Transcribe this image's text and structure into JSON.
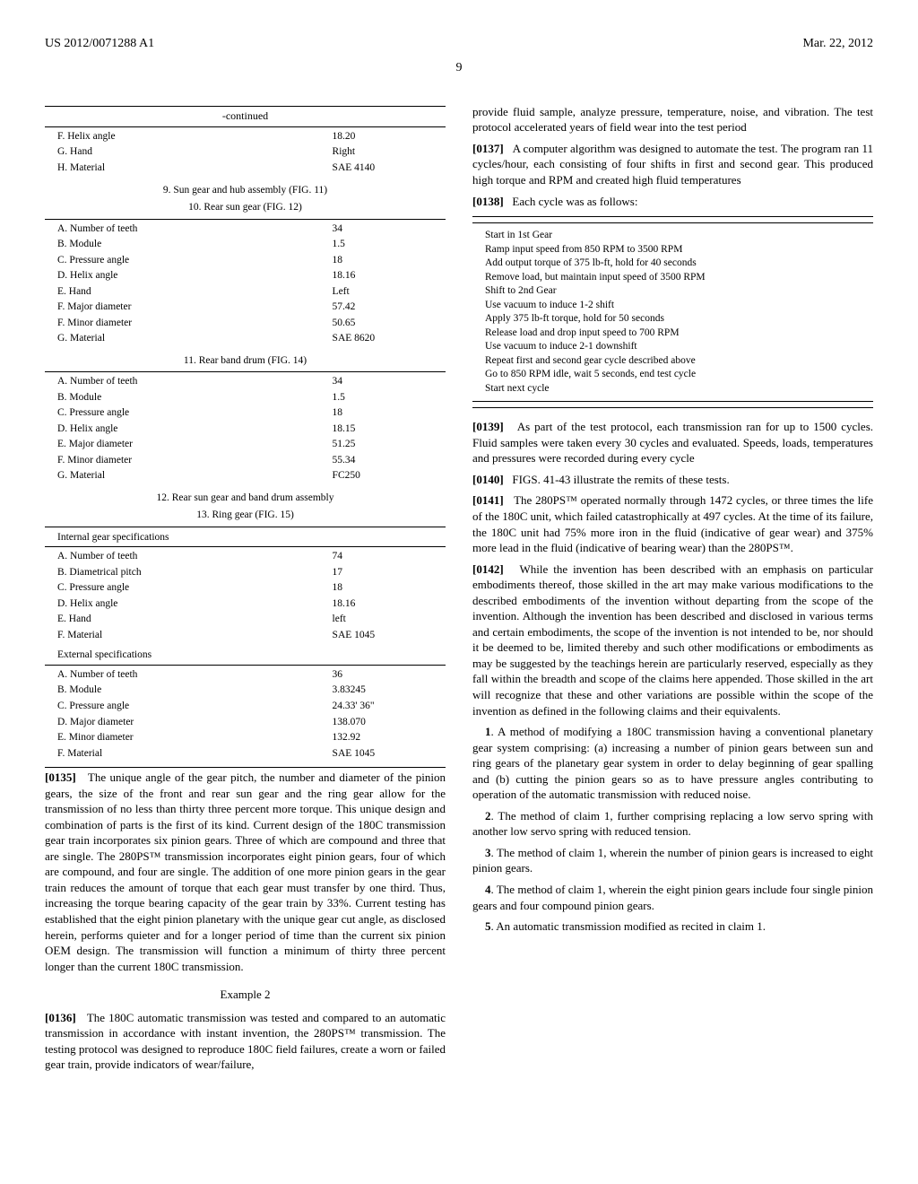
{
  "header": {
    "pub_number": "US 2012/0071288 A1",
    "date": "Mar. 22, 2012"
  },
  "page_number": "9",
  "left": {
    "continued": "-continued",
    "top_rows": [
      {
        "l": "F. Helix angle",
        "v": "18.20"
      },
      {
        "l": "G. Hand",
        "v": "Right"
      },
      {
        "l": "H. Material",
        "v": "SAE 4140"
      }
    ],
    "sec9": "9. Sun gear and hub assembly (FIG. 11)",
    "sec10": "10. Rear sun gear (FIG. 12)",
    "rows10": [
      {
        "l": "A. Number of teeth",
        "v": "34"
      },
      {
        "l": "B. Module",
        "v": "1.5"
      },
      {
        "l": "C. Pressure angle",
        "v": "18"
      },
      {
        "l": "D. Helix angle",
        "v": "18.16"
      },
      {
        "l": "E. Hand",
        "v": "Left"
      },
      {
        "l": "F. Major diameter",
        "v": "57.42"
      },
      {
        "l": "F. Minor diameter",
        "v": "50.65"
      },
      {
        "l": "G. Material",
        "v": "SAE 8620"
      }
    ],
    "sec11": "11. Rear band drum (FIG. 14)",
    "rows11": [
      {
        "l": "A. Number of teeth",
        "v": "34"
      },
      {
        "l": "B. Module",
        "v": "1.5"
      },
      {
        "l": "C. Pressure angle",
        "v": "18"
      },
      {
        "l": "D. Helix angle",
        "v": "18.15"
      },
      {
        "l": "E. Major diameter",
        "v": "51.25"
      },
      {
        "l": "F. Minor diameter",
        "v": "55.34"
      },
      {
        "l": "G. Material",
        "v": "FC250"
      }
    ],
    "sec12": "12. Rear sun gear and band drum assembly",
    "sec13": "13. Ring gear (FIG. 15)",
    "internal_head": "Internal gear specifications",
    "rows_int": [
      {
        "l": "A. Number of teeth",
        "v": "74"
      },
      {
        "l": "B. Diametrical pitch",
        "v": "17"
      },
      {
        "l": "C. Pressure angle",
        "v": "18"
      },
      {
        "l": "D. Helix angle",
        "v": "18.16"
      },
      {
        "l": "E. Hand",
        "v": "left"
      },
      {
        "l": "F. Material",
        "v": "SAE 1045"
      }
    ],
    "external_head": "External specifications",
    "rows_ext": [
      {
        "l": "A. Number of teeth",
        "v": "36"
      },
      {
        "l": "B. Module",
        "v": "3.83245"
      },
      {
        "l": "C. Pressure angle",
        "v": "24.33' 36\""
      },
      {
        "l": "D. Major diameter",
        "v": "138.070"
      },
      {
        "l": "E. Minor diameter",
        "v": "132.92"
      },
      {
        "l": "F. Material",
        "v": "SAE 1045"
      }
    ],
    "p0135_num": "[0135]",
    "p0135": "The unique angle of the gear pitch, the number and diameter of the pinion gears, the size of the front and rear sun gear and the ring gear allow for the transmission of no less than thirty three percent more torque. This unique design and combination of parts is the first of its kind. Current design of the 180C transmission gear train incorporates six pinion gears. Three of which are compound and three that are single. The 280PS™ transmission incorporates eight pinion gears, four of which are compound, and four are single. The addition of one more pinion gears in the gear train reduces the amount of torque that each gear must transfer by one third. Thus, increasing the torque bearing capacity of the gear train by 33%. Current testing has established that the eight pinion planetary with the unique gear cut angle, as disclosed herein, performs quieter and for a longer period of time than the current six pinion OEM design. The transmission will function a minimum of thirty three percent longer than the current 180C transmission.",
    "example2": "Example 2",
    "p0136_num": "[0136]",
    "p0136": "The 180C automatic transmission was tested and compared to an automatic transmission in accordance with instant invention, the 280PS™ transmission. The testing protocol was designed to reproduce 180C field failures, create a worn or failed gear train, provide indicators of wear/failure,"
  },
  "right": {
    "top_cont": "provide fluid sample, analyze pressure, temperature, noise, and vibration. The test protocol accelerated years of field wear into the test period",
    "p0137_num": "[0137]",
    "p0137": "A computer algorithm was designed to automate the test. The program ran 11 cycles/hour, each consisting of four shifts in first and second gear. This produced high torque and RPM and created high fluid temperatures",
    "p0138_num": "[0138]",
    "p0138": "Each cycle was as follows:",
    "cycle": [
      "Start in 1st Gear",
      "Ramp input speed from 850 RPM to 3500 RPM",
      "Add output torque of 375 lb-ft, hold for 40 seconds",
      "Remove load, but maintain input speed of 3500 RPM",
      "Shift to 2nd Gear",
      "Use vacuum to induce 1-2 shift",
      "Apply 375 lb-ft torque, hold for 50 seconds",
      "Release load and drop input speed to 700 RPM",
      "Use vacuum to induce 2-1 downshift",
      "Repeat first and second gear cycle described above",
      "Go to 850 RPM idle, wait 5 seconds, end test cycle",
      "Start next cycle"
    ],
    "p0139_num": "[0139]",
    "p0139": "As part of the test protocol, each transmission ran for up to 1500 cycles. Fluid samples were taken every 30 cycles and evaluated. Speeds, loads, temperatures and pressures were recorded during every cycle",
    "p0140_num": "[0140]",
    "p0140": "FIGS. 41-43 illustrate the remits of these tests.",
    "p0141_num": "[0141]",
    "p0141": "The 280PS™ operated normally through 1472 cycles, or three times the life of the 180C unit, which failed catastrophically at 497 cycles. At the time of its failure, the 180C unit had 75% more iron in the fluid (indicative of gear wear) and 375% more lead in the fluid (indicative of bearing wear) than the 280PS™.",
    "p0142_num": "[0142]",
    "p0142": "While the invention has been described with an emphasis on particular embodiments thereof, those skilled in the art may make various modifications to the described embodiments of the invention without departing from the scope of the invention. Although the invention has been described and disclosed in various terms and certain embodiments, the scope of the invention is not intended to be, nor should it be deemed to be, limited thereby and such other modifications or embodiments as may be suggested by the teachings herein are particularly reserved, especially as they fall within the breadth and scope of the claims here appended. Those skilled in the art will recognize that these and other variations are possible within the scope of the invention as defined in the following claims and their equivalents.",
    "claims": [
      {
        "n": "1",
        "t": ". A method of modifying a 180C transmission having a conventional planetary gear system comprising: (a) increasing a number of pinion gears between sun and ring gears of the planetary gear system in order to delay beginning of gear spalling and (b) cutting the pinion gears so as to have pressure angles contributing to operation of the automatic transmission with reduced noise."
      },
      {
        "n": "2",
        "t": ". The method of claim 1, further comprising replacing a low servo spring with another low servo spring with reduced tension."
      },
      {
        "n": "3",
        "t": ". The method of claim 1, wherein the number of pinion gears is increased to eight pinion gears."
      },
      {
        "n": "4",
        "t": ". The method of claim 1, wherein the eight pinion gears include four single pinion gears and four compound pinion gears."
      },
      {
        "n": "5",
        "t": ". An automatic transmission modified as recited in claim 1."
      }
    ]
  }
}
